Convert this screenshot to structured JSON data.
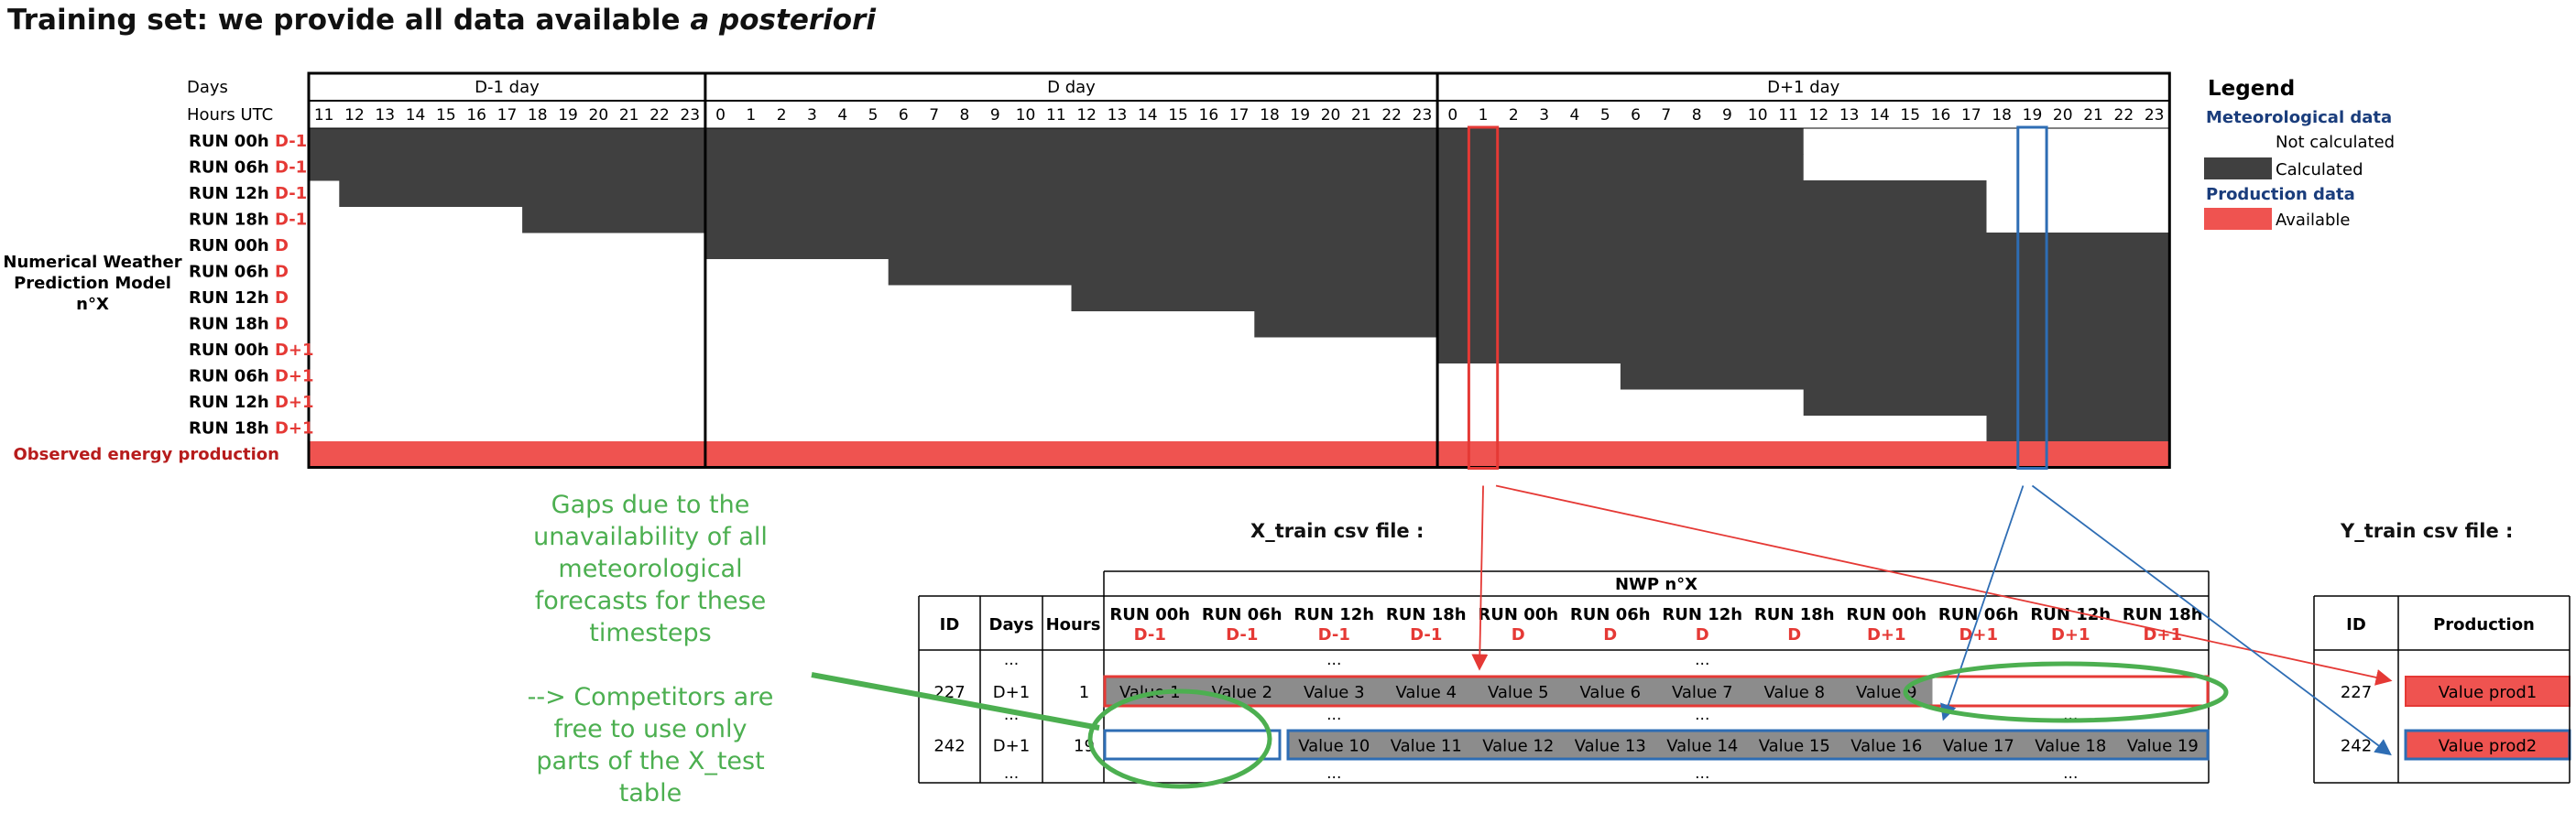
{
  "title": {
    "main": "Training set: we provide all data available ",
    "italic": "a posteriori"
  },
  "timeline": {
    "days_label": "Days",
    "hours_label": "Hours UTC",
    "days": [
      "D-1 day",
      "D day",
      "D+1 day"
    ],
    "day_hours": [
      [
        "11",
        "12",
        "13",
        "14",
        "15",
        "16",
        "17",
        "18",
        "19",
        "20",
        "21",
        "22",
        "23"
      ],
      [
        "0",
        "1",
        "2",
        "3",
        "4",
        "5",
        "6",
        "7",
        "8",
        "9",
        "10",
        "11",
        "12",
        "13",
        "14",
        "15",
        "16",
        "17",
        "18",
        "19",
        "20",
        "21",
        "22",
        "23"
      ],
      [
        "0",
        "1",
        "2",
        "3",
        "4",
        "5",
        "6",
        "7",
        "8",
        "9",
        "10",
        "11",
        "12",
        "13",
        "14",
        "15",
        "16",
        "17",
        "18",
        "19",
        "20",
        "21",
        "22",
        "23"
      ]
    ],
    "model_label": [
      "Numerical Weather",
      "Prediction Model",
      "n°X"
    ],
    "runs": [
      {
        "label": "RUN 00h",
        "suffix": "D-1",
        "start": 0
      },
      {
        "label": "RUN 06h",
        "suffix": "D-1",
        "start": 0
      },
      {
        "label": "RUN 12h",
        "suffix": "D-1",
        "start": 1
      },
      {
        "label": "RUN 18h",
        "suffix": "D-1",
        "start": 7
      },
      {
        "label": "RUN 00h",
        "suffix": "D",
        "start": 13
      },
      {
        "label": "RUN 06h",
        "suffix": "D",
        "start": 19
      },
      {
        "label": "RUN 12h",
        "suffix": "D",
        "start": 25
      },
      {
        "label": "RUN 18h",
        "suffix": "D",
        "start": 31
      },
      {
        "label": "RUN 00h",
        "suffix": "D+1",
        "start": 37
      },
      {
        "label": "RUN 06h",
        "suffix": "D+1",
        "start": 43
      },
      {
        "label": "RUN 12h",
        "suffix": "D+1",
        "start": 49
      },
      {
        "label": "RUN 18h",
        "suffix": "D+1",
        "start": 55
      }
    ],
    "run_end": [
      49,
      49,
      55,
      55,
      61,
      61,
      61,
      61,
      61,
      61,
      61,
      61
    ],
    "observed_label": "Observed energy production",
    "highlights": [
      {
        "index": 38,
        "color": "#e53935"
      },
      {
        "index": 56,
        "color": "#2e6db4"
      }
    ]
  },
  "legend": {
    "title": "Legend",
    "met_title": "Meteorological data",
    "not_calculated": "Not calculated",
    "calculated": "Calculated",
    "prod_title": "Production data",
    "available": "Available"
  },
  "colors": {
    "calculated": "#404040",
    "available": "#EF5350",
    "cell_gray": "#8C8C8C",
    "red": "#e53935",
    "blue": "#2e6db4",
    "green": "#4CAF50"
  },
  "annotation": {
    "lines": [
      "Gaps due to the",
      "unavailability of all",
      "meteorological",
      "forecasts for these",
      "timesteps",
      "",
      "--> Competitors are",
      "free to use only",
      "parts of the X_test",
      "table"
    ]
  },
  "x_train": {
    "title": "X_train csv file :",
    "nwp_label": "NWP n°X",
    "col_id": "ID",
    "col_days": "Days",
    "col_hours": "Hours",
    "runs": [
      {
        "label": "RUN 00h",
        "day": "D-1"
      },
      {
        "label": "RUN 06h",
        "day": "D-1"
      },
      {
        "label": "RUN 12h",
        "day": "D-1"
      },
      {
        "label": "RUN 18h",
        "day": "D-1"
      },
      {
        "label": "RUN 00h",
        "day": "D"
      },
      {
        "label": "RUN 06h",
        "day": "D"
      },
      {
        "label": "RUN 12h",
        "day": "D"
      },
      {
        "label": "RUN 18h",
        "day": "D"
      },
      {
        "label": "RUN 00h",
        "day": "D+1"
      },
      {
        "label": "RUN 06h",
        "day": "D+1"
      },
      {
        "label": "RUN 12h",
        "day": "D+1"
      },
      {
        "label": "RUN 18h",
        "day": "D+1"
      }
    ],
    "ellipsis": "...",
    "row1": {
      "id": "227",
      "day": "D+1",
      "hour": "1",
      "values": [
        "Value 1",
        "Value 2",
        "Value 3",
        "Value 4",
        "Value 5",
        "Value 6",
        "Value 7",
        "Value 8",
        "Value 9",
        "",
        "",
        ""
      ]
    },
    "row2": {
      "id": "242",
      "day": "D+1",
      "hour": "19",
      "values": [
        "",
        "",
        "Value 10",
        "Value 11",
        "Value 12",
        "Value 13",
        "Value 14",
        "Value 15",
        "Value 16",
        "Value 17",
        "Value 18",
        "Value 19"
      ]
    }
  },
  "y_train": {
    "title": "Y_train csv file :",
    "col_id": "ID",
    "col_prod": "Production",
    "row1": {
      "id": "227",
      "value": "Value prod1"
    },
    "row2": {
      "id": "242",
      "value": "Value prod2"
    }
  }
}
